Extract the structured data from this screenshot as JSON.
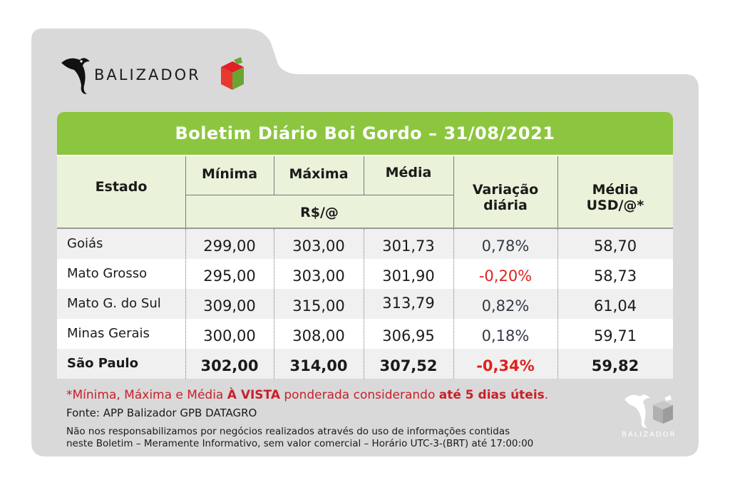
{
  "brand": {
    "name": "BALIZADOR",
    "watermark_name": "BALIZADOR"
  },
  "colors": {
    "title_green": "#8cc63f",
    "header_bg": "#eaf2da",
    "negative_red": "#e0211d",
    "footnote_red": "#c8202a",
    "card_gray": "#d9d9d9"
  },
  "title": "Boletim Diário Boi Gordo – 31/08/2021",
  "headers": {
    "estado": "Estado",
    "minima": "Mínima",
    "maxima": "Máxima",
    "media": "Média",
    "unit": "R$/@",
    "variacao_line1": "Variação",
    "variacao_line2": "diária",
    "media_usd_line1": "Média",
    "media_usd_line2": "USD/@*"
  },
  "rows": [
    {
      "estado": "Goiás",
      "minima": "299,00",
      "maxima": "303,00",
      "media": "301,73",
      "variacao": "0,78%",
      "media_usd": "58,70"
    },
    {
      "estado": "Mato Grosso",
      "minima": "295,00",
      "maxima": "303,00",
      "media": "301,90",
      "variacao": "-0,20%",
      "media_usd": "58,73"
    },
    {
      "estado": "Mato G. do Sul",
      "minima": "309,00",
      "maxima": "315,00",
      "media": "313,79",
      "variacao": "0,82%",
      "media_usd": "61,04"
    },
    {
      "estado": "Minas Gerais",
      "minima": "300,00",
      "maxima": "308,00",
      "media": "306,95",
      "variacao": "0,18%",
      "media_usd": "59,71"
    },
    {
      "estado": "São Paulo",
      "minima": "302,00",
      "maxima": "314,00",
      "media": "307,52",
      "variacao": "-0,34%",
      "media_usd": "59,82"
    }
  ],
  "footnote": {
    "part1": "*Mínima, Máxima e Média ",
    "part2": "À VISTA",
    "part3": " ponderada considerando ",
    "part4": "até 5 dias úteis",
    "part5": "."
  },
  "source": "Fonte: APP Balizador GPB DATAGRO",
  "disclaimer_line1": "Não nos responsabilizamos por negócios realizados através do uso de informações contidas",
  "disclaimer_line2": "neste Boletim – Meramente Informativo, sem valor comercial – Horário UTC-3-(BRT) até 17:00:00"
}
